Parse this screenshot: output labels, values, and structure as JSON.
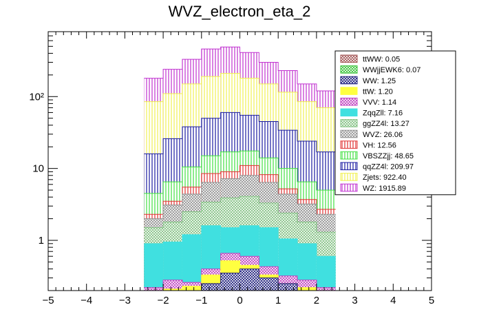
{
  "chart_data": {
    "type": "stacked-histogram",
    "title": "WVZ_electron_eta_2",
    "xlabel": "",
    "ylabel": "",
    "xlim": [
      -5,
      5
    ],
    "yscale": "log",
    "ylim": [
      0.2,
      800
    ],
    "x_ticks": [
      -5,
      -4,
      -3,
      -2,
      -1,
      0,
      1,
      2,
      3,
      4,
      5
    ],
    "y_ticks": [
      {
        "value": 1,
        "label": "1"
      },
      {
        "value": 10,
        "label": "10"
      },
      {
        "value": 100,
        "label": "10²"
      }
    ],
    "bin_edges": [
      -2.5,
      -2.0,
      -1.5,
      -1.0,
      -0.5,
      0.0,
      0.5,
      1.0,
      1.5,
      2.0,
      2.5
    ],
    "stack_top_cumulative": [
      {
        "name": "ttWW",
        "legend": "ttWW: 0.05",
        "color": "#a05050",
        "pattern": "cross",
        "cumulative": [
          0.2,
          0.2,
          0.2,
          0.2,
          0.2,
          0.2,
          0.2,
          0.2,
          0.2,
          0.2
        ]
      },
      {
        "name": "WWjjEWK6",
        "legend": "WWjjEWK6: 0.07",
        "color": "#30c030",
        "pattern": "cross",
        "cumulative": [
          0.2,
          0.2,
          0.2,
          0.2,
          0.2,
          0.2,
          0.2,
          0.2,
          0.2,
          0.2
        ]
      },
      {
        "name": "WW",
        "legend": "WW: 1.25",
        "color": "#1a1a7a",
        "pattern": "cross",
        "cumulative": [
          0.2,
          0.2,
          0.2,
          0.25,
          0.35,
          0.4,
          0.3,
          0.25,
          0.2,
          0.2
        ]
      },
      {
        "name": "ttW",
        "legend": "ttW: 1.20",
        "color": "#ffff40",
        "pattern": "solid",
        "cumulative": [
          0.2,
          0.21,
          0.23,
          0.33,
          0.52,
          0.45,
          0.33,
          0.25,
          0.22,
          0.2
        ]
      },
      {
        "name": "VVV",
        "legend": "VVV: 1.14",
        "color": "#c040c0",
        "pattern": "cross",
        "cumulative": [
          0.22,
          0.28,
          0.26,
          0.4,
          0.66,
          0.6,
          0.43,
          0.32,
          0.28,
          0.22
        ]
      },
      {
        "name": "ZqqZll",
        "legend": "ZqqZll: 7.16",
        "color": "#40e0e0",
        "pattern": "solid",
        "cumulative": [
          0.9,
          0.95,
          1.2,
          1.6,
          1.5,
          1.6,
          1.5,
          1.05,
          0.9,
          0.6
        ]
      },
      {
        "name": "ggZZ4l",
        "legend": "ggZZ4l: 13.27",
        "color": "#80c080",
        "pattern": "cross",
        "cumulative": [
          1.5,
          1.8,
          2.5,
          3.4,
          3.9,
          4.1,
          3.3,
          2.4,
          1.8,
          1.3
        ]
      },
      {
        "name": "WVZ",
        "legend": "WVZ: 26.06",
        "color": "#909090",
        "pattern": "cross",
        "cumulative": [
          2.0,
          3.1,
          4.4,
          6.4,
          7.2,
          8.0,
          6.4,
          4.4,
          3.2,
          2.3
        ]
      },
      {
        "name": "VH",
        "legend": "VH: 12.56",
        "color": "#e03030",
        "pattern": "vertical",
        "cumulative": [
          2.3,
          3.5,
          5.5,
          8.5,
          9.0,
          11.0,
          8.2,
          5.2,
          3.7,
          2.7
        ]
      },
      {
        "name": "VBSZZjj",
        "legend": "VBSZZjj: 48.65",
        "color": "#40e040",
        "pattern": "vertical",
        "cumulative": [
          4.5,
          6.5,
          10.5,
          15.0,
          17.0,
          17.5,
          14.0,
          10.0,
          6.5,
          5.0
        ]
      },
      {
        "name": "qqZZ4l",
        "legend": "qqZZ4l: 209.97",
        "color": "#1818a0",
        "pattern": "vertical",
        "cumulative": [
          16.0,
          26.0,
          38.0,
          50.0,
          60.0,
          55.0,
          45.0,
          34.0,
          24.0,
          17.0
        ]
      },
      {
        "name": "Zjets",
        "legend": "Zjets: 922.40",
        "color": "#f0f050",
        "pattern": "vertical",
        "cumulative": [
          85.0,
          110.0,
          150.0,
          190.0,
          210.0,
          180.0,
          150.0,
          115.0,
          85.0,
          70.0
        ]
      },
      {
        "name": "WZ",
        "legend": "WZ: 1915.89",
        "color": "#c030d0",
        "pattern": "vertical",
        "cumulative": [
          180.0,
          240.0,
          330.0,
          460.0,
          490.0,
          410.0,
          300.0,
          230.0,
          150.0,
          120.0
        ]
      }
    ]
  }
}
